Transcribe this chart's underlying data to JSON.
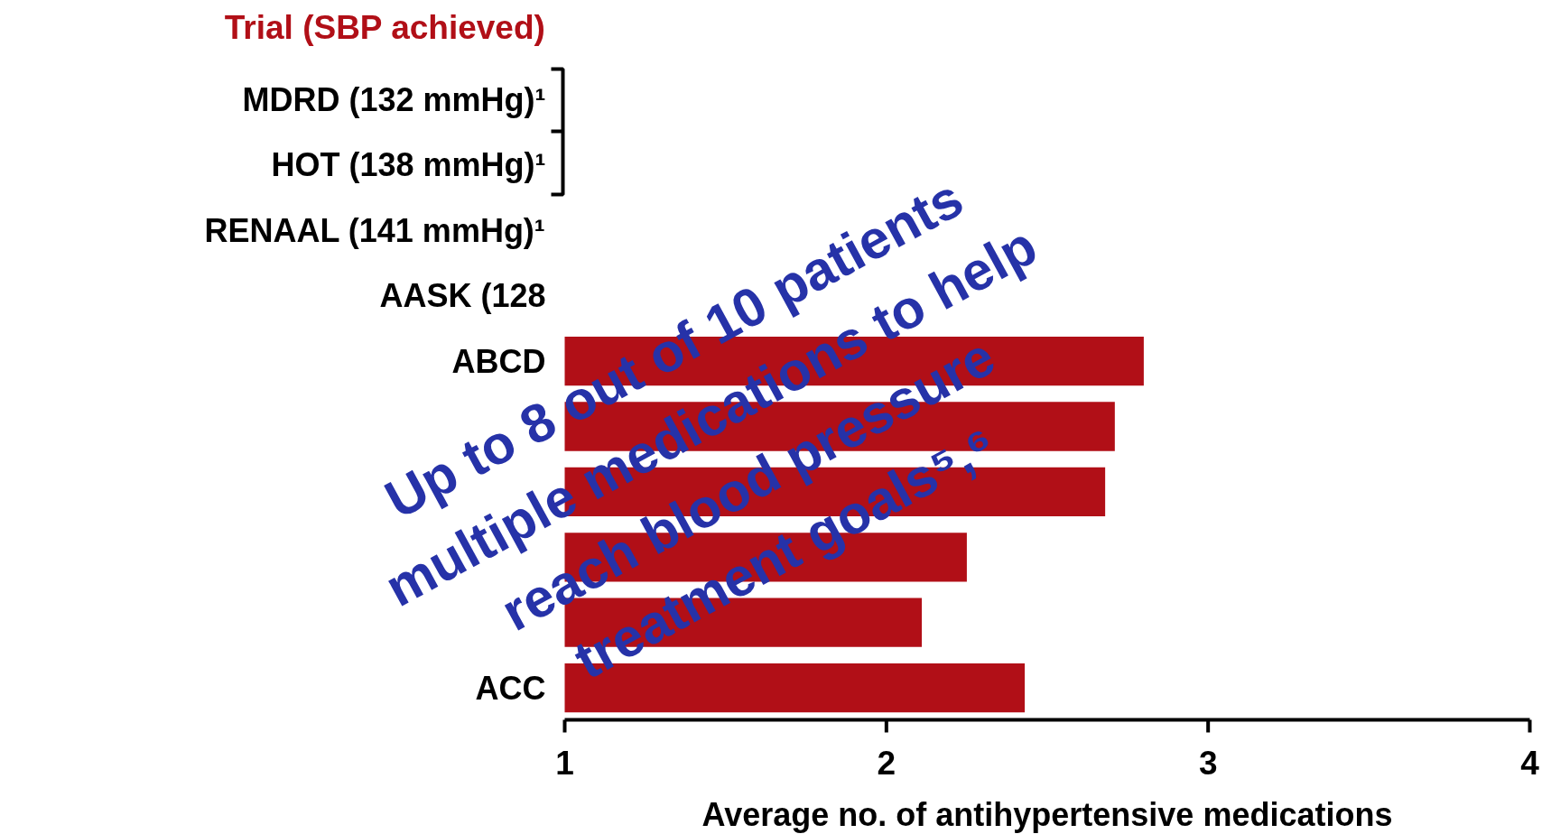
{
  "chart_data": {
    "type": "bar",
    "orientation": "horizontal",
    "ylabel": "Trial (SBP achieved)",
    "xlabel": "Average no. of antihypertensive medications",
    "categories": [
      "MDRD (132 mmHg)¹",
      "HOT (138 mmHg)¹",
      "RENAAL (141 mmHg)¹",
      "AASK (128",
      "ABCD",
      null,
      null,
      null,
      null,
      "ACC"
    ],
    "values": [
      null,
      null,
      null,
      null,
      2.8,
      2.71,
      2.68,
      2.25,
      2.11,
      2.43
    ],
    "color": "#b10f17",
    "xlim": [
      1,
      4
    ],
    "xticks": [
      1,
      2,
      3,
      4
    ],
    "grid": false,
    "annotations": [
      "Up to 8 out of 10 patients",
      "multiple medications to help",
      "reach blood pressure",
      "treatment goals⁵,⁶"
    ]
  }
}
